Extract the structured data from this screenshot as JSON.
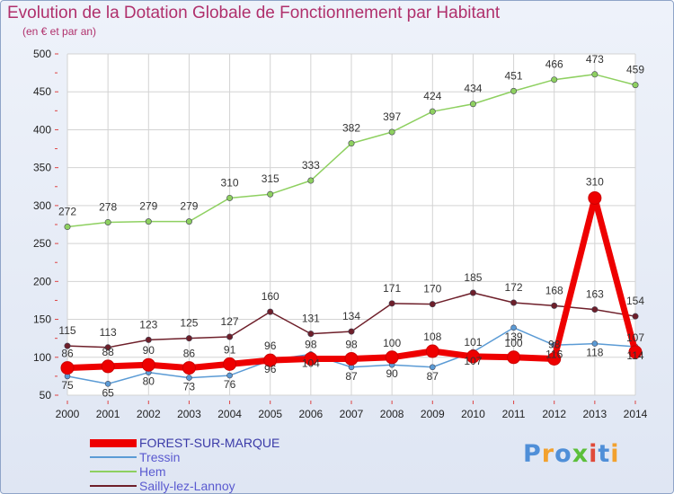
{
  "chart_data": {
    "type": "line",
    "title": "Evolution de la Dotation Globale de Fonctionnement par Habitant",
    "subtitle": "(en € et par an)",
    "xlabel": "",
    "ylabel": "",
    "ylim": [
      50,
      500
    ],
    "yticks": [
      50,
      100,
      150,
      200,
      250,
      300,
      350,
      400,
      450,
      500
    ],
    "categories": [
      "2000",
      "2001",
      "2002",
      "2003",
      "2004",
      "2005",
      "2006",
      "2007",
      "2008",
      "2009",
      "2010",
      "2011",
      "2012",
      "2013",
      "2014"
    ],
    "grid": true,
    "legend_position": "bottom-left",
    "series": [
      {
        "name": "FOREST-SUR-MARQUE",
        "color": "#ee0000",
        "values": [
          86,
          88,
          90,
          86,
          91,
          96,
          98,
          98,
          100,
          108,
          101,
          100,
          98,
          310,
          107
        ]
      },
      {
        "name": "Tressin",
        "color": "#5b9bd5",
        "values": [
          75,
          65,
          80,
          73,
          76,
          96,
          104,
          87,
          90,
          87,
          107,
          139,
          116,
          118,
          114
        ]
      },
      {
        "name": "Hem",
        "color": "#8ed060",
        "values": [
          272,
          278,
          279,
          279,
          310,
          315,
          333,
          382,
          397,
          424,
          434,
          451,
          466,
          473,
          459
        ]
      },
      {
        "name": "Sailly-lez-Lannoy",
        "color": "#6e1f2a",
        "values": [
          115,
          113,
          123,
          125,
          127,
          160,
          131,
          134,
          171,
          170,
          185,
          172,
          168,
          163,
          154
        ]
      }
    ]
  },
  "logo": {
    "text": "Proxiti",
    "colors": [
      "#4f8fd8",
      "#f2a12e",
      "#4f8fd8",
      "#5bbf3a",
      "#e04a3a",
      "#4f8fd8",
      "#f2a12e"
    ]
  }
}
